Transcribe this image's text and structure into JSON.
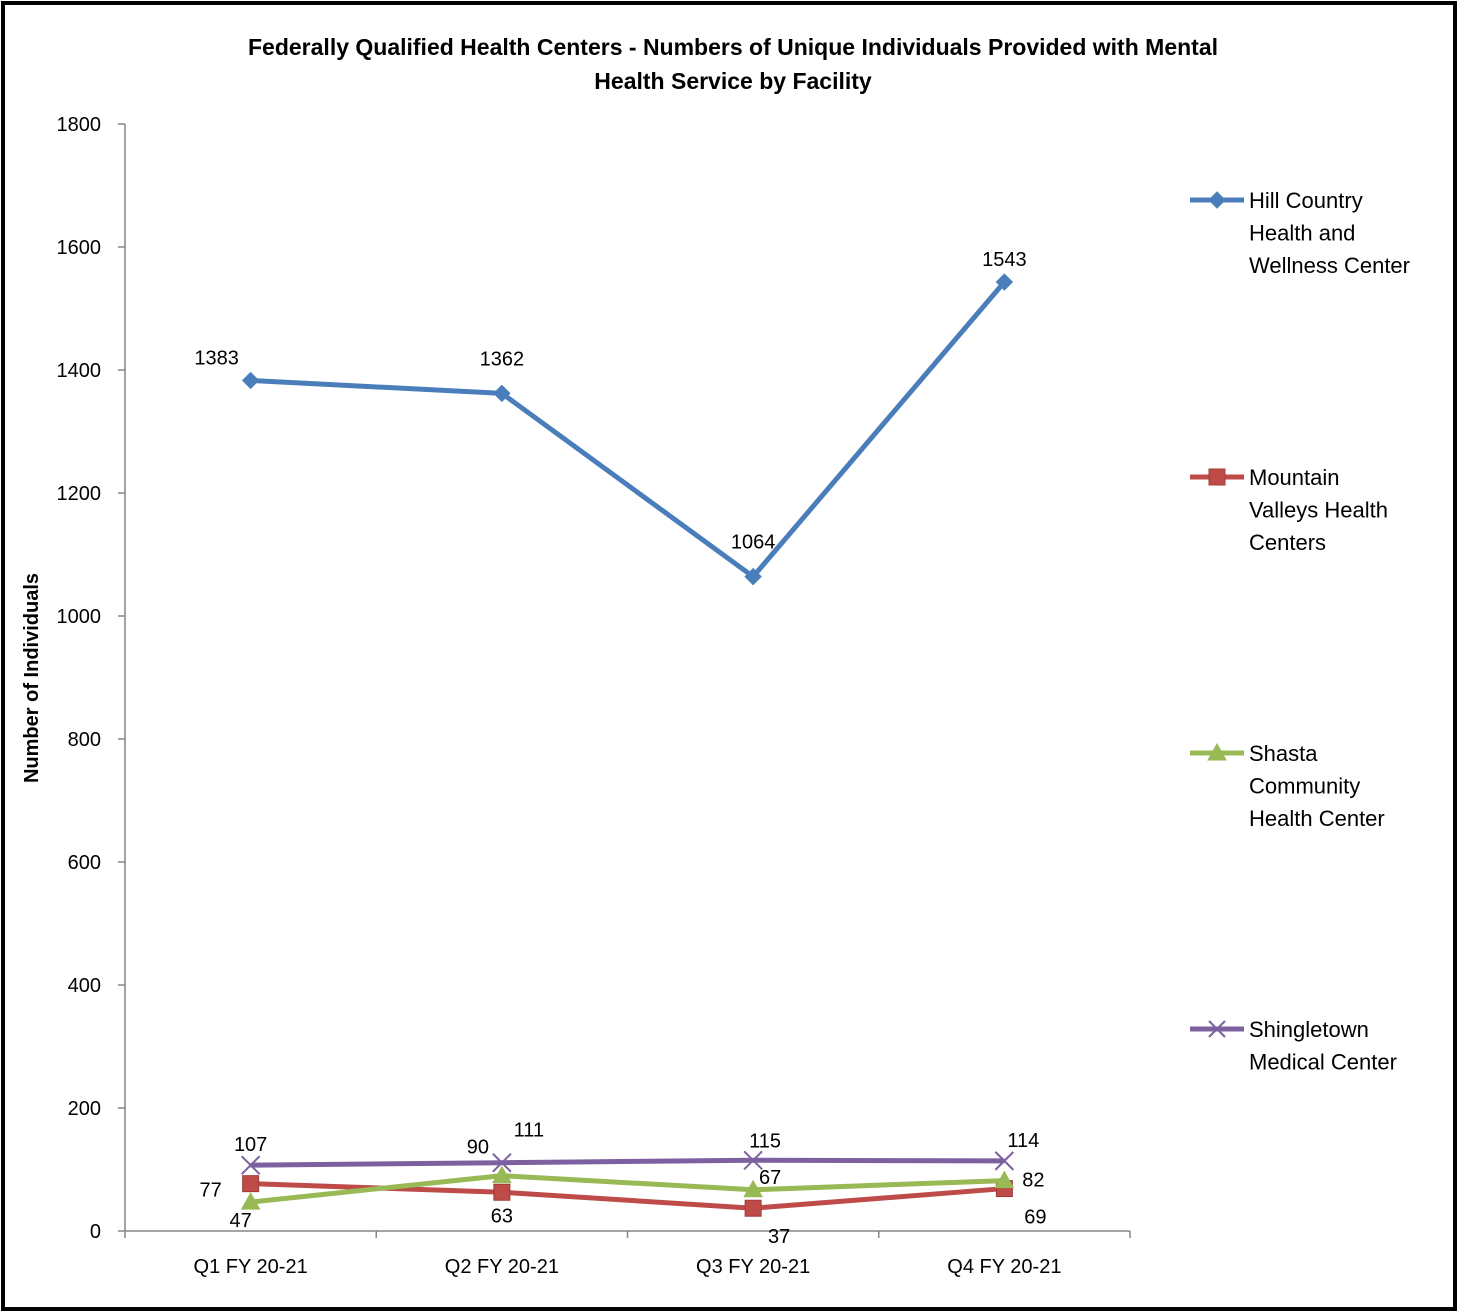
{
  "chart_data": {
    "type": "line",
    "title": [
      "Federally Qualified Health Centers - Numbers of Unique Individuals Provided with Mental",
      "Health Service by Facility"
    ],
    "ylabel": "Number of Individuals",
    "xlabel": "",
    "ylim": [
      0,
      1800
    ],
    "yticks": [
      0,
      200,
      400,
      600,
      800,
      1000,
      1200,
      1400,
      1600,
      1800
    ],
    "categories": [
      "Q1 FY 20-21",
      "Q2 FY 20-21",
      "Q3 FY 20-21",
      "Q4 FY 20-21"
    ],
    "grid": false,
    "legend_position": "right",
    "series": [
      {
        "name": "Hill Country Health and Wellness Center",
        "legend_lines": [
          "Hill Country",
          "Health and",
          "Wellness Center"
        ],
        "values": [
          1383,
          1362,
          1064,
          1543
        ],
        "color": "#4a7ebb",
        "marker": "diamond"
      },
      {
        "name": "Mountain Valleys Health Centers",
        "legend_lines": [
          "Mountain",
          "Valleys Health",
          "Centers"
        ],
        "values": [
          77,
          63,
          37,
          69
        ],
        "color": "#be4b48",
        "marker": "square"
      },
      {
        "name": "Shasta Community Health Center",
        "legend_lines": [
          "Shasta",
          "Community",
          "Health Center"
        ],
        "values": [
          47,
          90,
          67,
          82
        ],
        "color": "#98b954",
        "marker": "triangle"
      },
      {
        "name": "Shingletown Medical Center",
        "legend_lines": [
          "Shingletown",
          "Medical Center"
        ],
        "values": [
          107,
          111,
          115,
          114
        ],
        "color": "#7d60a0",
        "marker": "x"
      }
    ]
  }
}
